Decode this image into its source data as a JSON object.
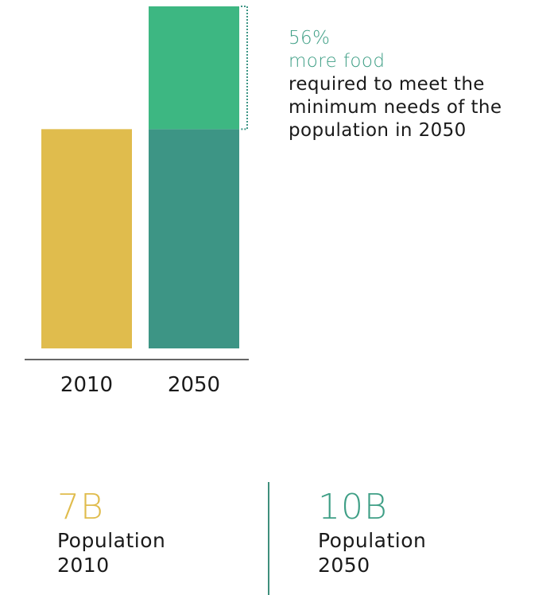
{
  "chart_data": {
    "type": "bar",
    "categories": [
      "2010",
      "2050"
    ],
    "values": [
      100,
      156
    ],
    "bar_colors": [
      "#e0bc4d",
      "#3d9585"
    ],
    "increase_color": "#3db782",
    "bracket_color": "#3d9585",
    "baseline_color": "#333333",
    "ylim": [
      0,
      156
    ],
    "increase_percent": 56
  },
  "annotation": {
    "percent": "56%",
    "headline": "more food",
    "description": "required to meet the minimum needs of the population in 2050"
  },
  "stats": [
    {
      "value": "7B",
      "label": "Population",
      "year": "2010"
    },
    {
      "value": "10B",
      "label": "Population",
      "year": "2050"
    }
  ]
}
